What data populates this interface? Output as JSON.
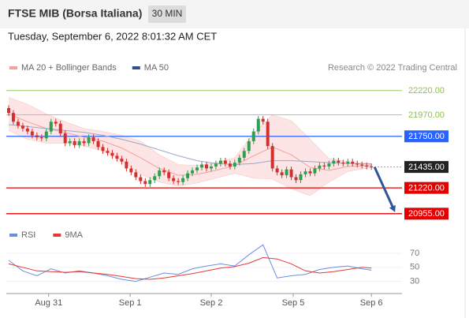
{
  "header": {
    "title": "FTSE MIB (Borsa Italiana)",
    "interval": "30 MIN",
    "timestamp": "Tuesday, September 6, 2022 8:01:32 AM CET",
    "credit": "Research © 2022 Trading Central"
  },
  "chart_data": [
    {
      "type": "candlestick",
      "x": [
        0,
        1,
        2,
        3,
        4,
        5,
        6,
        7,
        8,
        9,
        10,
        11,
        12,
        13,
        14,
        15,
        16,
        17,
        18,
        19,
        20,
        21,
        22,
        23,
        24,
        25,
        26,
        27,
        28,
        29,
        30,
        31,
        32,
        33,
        34,
        35,
        36,
        37,
        38,
        39,
        40,
        41,
        42,
        43,
        44,
        45,
        46,
        47,
        48,
        49,
        50,
        51,
        52,
        53,
        54,
        55,
        56,
        57,
        58,
        59,
        60,
        61,
        62,
        63,
        64,
        65,
        66,
        67,
        68,
        69,
        70,
        71,
        72,
        73,
        74,
        75,
        76,
        77
      ],
      "open": [
        22040,
        21990,
        21900,
        21860,
        21830,
        21800,
        21760,
        21740,
        21730,
        21800,
        21900,
        21880,
        21780,
        21680,
        21700,
        21660,
        21700,
        21680,
        21740,
        21700,
        21640,
        21600,
        21580,
        21550,
        21520,
        21490,
        21420,
        21380,
        21330,
        21290,
        21260,
        21300,
        21340,
        21400,
        21380,
        21320,
        21290,
        21280,
        21320,
        21370,
        21400,
        21430,
        21460,
        21420,
        21440,
        21470,
        21500,
        21470,
        21440,
        21480,
        21530,
        21600,
        21700,
        21800,
        21930,
        21900,
        21650,
        21420,
        21380,
        21350,
        21410,
        21330,
        21300,
        21360,
        21390,
        21370,
        21420,
        21450,
        21440,
        21470,
        21500,
        21480,
        21470,
        21490,
        21470,
        21460,
        21450,
        21440
      ],
      "high": [
        22070,
        22020,
        21930,
        21890,
        21860,
        21830,
        21790,
        21770,
        21830,
        21930,
        21930,
        21910,
        21810,
        21730,
        21730,
        21730,
        21730,
        21770,
        21770,
        21730,
        21670,
        21630,
        21610,
        21580,
        21550,
        21520,
        21450,
        21410,
        21360,
        21320,
        21330,
        21370,
        21430,
        21430,
        21410,
        21350,
        21320,
        21350,
        21400,
        21430,
        21460,
        21490,
        21490,
        21470,
        21500,
        21530,
        21530,
        21500,
        21510,
        21560,
        21630,
        21730,
        21830,
        21960,
        21960,
        21930,
        21680,
        21450,
        21410,
        21440,
        21440,
        21360,
        21390,
        21420,
        21420,
        21450,
        21480,
        21480,
        21500,
        21530,
        21530,
        21510,
        21520,
        21520,
        21500,
        21490,
        21480,
        21470
      ],
      "low": [
        21960,
        21870,
        21830,
        21800,
        21770,
        21730,
        21710,
        21700,
        21700,
        21770,
        21850,
        21750,
        21650,
        21650,
        21630,
        21630,
        21650,
        21650,
        21670,
        21610,
        21570,
        21550,
        21520,
        21490,
        21460,
        21390,
        21350,
        21300,
        21260,
        21230,
        21230,
        21270,
        21310,
        21350,
        21290,
        21260,
        21250,
        21250,
        21290,
        21340,
        21370,
        21400,
        21390,
        21390,
        21410,
        21440,
        21440,
        21410,
        21410,
        21450,
        21500,
        21570,
        21670,
        21770,
        21870,
        21620,
        21390,
        21350,
        21320,
        21320,
        21300,
        21270,
        21270,
        21330,
        21340,
        21340,
        21390,
        21410,
        21410,
        21440,
        21450,
        21440,
        21440,
        21440,
        21430,
        21420,
        21410,
        21405
      ],
      "close": [
        21990,
        21900,
        21860,
        21830,
        21800,
        21760,
        21740,
        21730,
        21800,
        21900,
        21880,
        21780,
        21680,
        21700,
        21660,
        21700,
        21680,
        21740,
        21700,
        21640,
        21600,
        21580,
        21550,
        21520,
        21490,
        21420,
        21380,
        21330,
        21290,
        21260,
        21300,
        21340,
        21400,
        21380,
        21320,
        21290,
        21280,
        21320,
        21370,
        21400,
        21430,
        21460,
        21420,
        21440,
        21470,
        21500,
        21470,
        21440,
        21480,
        21530,
        21600,
        21700,
        21800,
        21930,
        21900,
        21650,
        21420,
        21380,
        21350,
        21410,
        21330,
        21300,
        21360,
        21390,
        21370,
        21420,
        21450,
        21440,
        21470,
        21500,
        21480,
        21470,
        21490,
        21470,
        21460,
        21450,
        21440,
        21435
      ],
      "up_color": "#2e9e4f",
      "down_color": "#d32f2f",
      "overlays": [
        {
          "name": "MA 20 + Bollinger Bands",
          "color": "#f3a19b",
          "band_color": "#fbd3d3",
          "x": [
            0,
            4,
            8,
            12,
            16,
            20,
            24,
            28,
            32,
            36,
            40,
            44,
            48,
            52,
            56,
            60,
            64,
            68,
            72,
            77
          ],
          "values": [
            21980,
            21900,
            21830,
            21790,
            21740,
            21700,
            21630,
            21530,
            21420,
            21350,
            21360,
            21400,
            21450,
            21550,
            21640,
            21560,
            21430,
            21400,
            21440,
            21450
          ],
          "upper": [
            22150,
            22080,
            21980,
            21900,
            21830,
            21800,
            21760,
            21700,
            21560,
            21460,
            21450,
            21480,
            21530,
            21780,
            21970,
            21910,
            21720,
            21520,
            21490,
            21470
          ],
          "lower": [
            21810,
            21720,
            21680,
            21680,
            21650,
            21600,
            21500,
            21360,
            21280,
            21240,
            21270,
            21320,
            21370,
            21320,
            21310,
            21210,
            21140,
            21280,
            21390,
            21430
          ]
        },
        {
          "name": "MA 50",
          "color": "#2f4f8f",
          "line_color": "#9aa8c8",
          "x": [
            0,
            4,
            8,
            12,
            16,
            20,
            24,
            28,
            32,
            36,
            40,
            44,
            48,
            52,
            56,
            60,
            64,
            68,
            72,
            77
          ],
          "values": [
            21870,
            21850,
            21830,
            21810,
            21790,
            21760,
            21720,
            21670,
            21610,
            21550,
            21500,
            21470,
            21460,
            21470,
            21500,
            21500,
            21490,
            21480,
            21470,
            21465
          ]
        }
      ],
      "levels": [
        {
          "value": 22220,
          "label": "22220.00",
          "color": "#8bc34a",
          "style": "text"
        },
        {
          "value": 21970,
          "label": "21970.00",
          "color": "#8bc34a",
          "style": "text"
        },
        {
          "value": 21750,
          "label": "21750.00",
          "color": "#2962ff",
          "style": "box"
        },
        {
          "value": 21435,
          "label": "21435.00",
          "color": "#222222",
          "style": "box",
          "dash": true
        },
        {
          "value": 21220,
          "label": "21220.00",
          "color": "#e50000",
          "style": "box"
        },
        {
          "value": 20955,
          "label": "20955.00",
          "color": "#e50000",
          "style": "box"
        }
      ],
      "forecast": {
        "from": 21435,
        "to": 20955,
        "color": "#2f5597"
      },
      "xlim": [
        -0.5,
        83.5
      ],
      "ylim": [
        20840,
        22340
      ]
    },
    {
      "type": "line",
      "series": [
        {
          "name": "RSI",
          "color": "#6b8ee0",
          "x": [
            0,
            3,
            6,
            9,
            12,
            15,
            18,
            21,
            24,
            27,
            30,
            33,
            36,
            39,
            42,
            45,
            48,
            51,
            54,
            57,
            60,
            63,
            66,
            69,
            72,
            75,
            77
          ],
          "values": [
            60,
            45,
            38,
            48,
            42,
            45,
            42,
            38,
            33,
            30,
            36,
            42,
            40,
            48,
            52,
            55,
            52,
            68,
            82,
            35,
            38,
            40,
            47,
            50,
            52,
            48,
            46
          ]
        },
        {
          "name": "9MA",
          "color": "#e53935",
          "x": [
            0,
            3,
            6,
            9,
            12,
            15,
            18,
            21,
            24,
            27,
            30,
            33,
            36,
            39,
            42,
            45,
            48,
            51,
            54,
            57,
            60,
            63,
            66,
            69,
            72,
            75,
            77
          ],
          "values": [
            55,
            50,
            45,
            44,
            43,
            44,
            42,
            40,
            37,
            34,
            33,
            35,
            38,
            41,
            45,
            49,
            51,
            56,
            64,
            62,
            55,
            45,
            42,
            44,
            47,
            50,
            49
          ]
        }
      ],
      "xlim": [
        -0.5,
        83.5
      ],
      "ylim": [
        15,
        88
      ],
      "yticks": [
        30,
        50,
        70
      ],
      "xticks": [
        {
          "value": 8.5,
          "label": "Aug 31"
        },
        {
          "value": 25.8,
          "label": "Sep 1"
        },
        {
          "value": 43,
          "label": "Sep 2"
        },
        {
          "value": 60.4,
          "label": "Sep 5"
        },
        {
          "value": 77,
          "label": "Sep 6"
        }
      ]
    }
  ]
}
